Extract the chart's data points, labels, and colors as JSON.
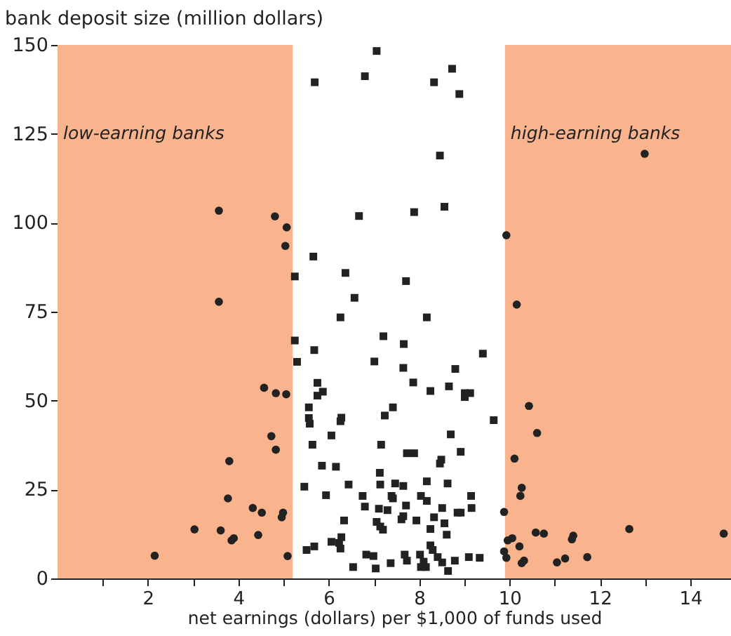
{
  "chart_data": {
    "type": "scatter",
    "xlabel": "net earnings (dollars) per $1,000 of funds used",
    "ylabel": "bank  deposit  size (million dollars)",
    "xlim": [
      0,
      14.9
    ],
    "ylim": [
      0,
      150
    ],
    "xticks": [
      {
        "value": 1,
        "label": null
      },
      2,
      {
        "value": 3,
        "label": null
      },
      4,
      {
        "value": 5,
        "label": null
      },
      6,
      {
        "value": 7,
        "label": null
      },
      8,
      {
        "value": 9,
        "label": null
      },
      10,
      {
        "value": 11,
        "label": null
      },
      12,
      {
        "value": 13,
        "label": null
      },
      14
    ],
    "yticks": [
      0,
      25,
      50,
      75,
      100,
      125,
      150
    ],
    "bands": [
      {
        "axis": "x",
        "from": 0,
        "to": 5.2,
        "label": "low-earning banks",
        "color": "#f9b48e"
      },
      {
        "axis": "x",
        "from": 9.9,
        "to": 14.9,
        "label": "high-earning banks",
        "color": "#f9b48e"
      }
    ],
    "series": [
      {
        "color": "#222222",
        "marker": "circle",
        "x": [
          3.57,
          4.57,
          4.83,
          5.06,
          4.73,
          4.83,
          3.8,
          3.77,
          4.32,
          4.52,
          4.99,
          4.96,
          3.03,
          3.61,
          3.9,
          3.85,
          4.44,
          2.15,
          5.09,
          3.57,
          4.81,
          5.07,
          5.04,
          12.99,
          9.93,
          10.16,
          10.43,
          10.61,
          10.11,
          10.27,
          10.24,
          9.88,
          9.96,
          10.06,
          9.88,
          9.93,
          10.22,
          10.32,
          10.27,
          10.58,
          10.76,
          11.05,
          11.23,
          11.41,
          11.38,
          11.72,
          12.65,
          14.74
        ],
        "values": [
          77.8,
          53.6,
          52.1,
          51.8,
          40,
          36.2,
          33,
          22.5,
          19.8,
          18.5,
          18.5,
          17.2,
          13.8,
          13.5,
          11.3,
          10.7,
          12.2,
          6.4,
          6.3,
          103.4,
          101.8,
          98.7,
          93.5,
          119.4,
          96.5,
          77,
          48.5,
          40.9,
          33.7,
          25.5,
          23.2,
          18.7,
          10.7,
          11.3,
          7.6,
          5.8,
          9,
          5,
          4.3,
          12.9,
          12.6,
          4.5,
          5.6,
          12,
          11,
          6,
          13.9,
          12.6
        ]
      },
      {
        "color": "#222222",
        "marker": "square",
        "x": [
          7.06,
          6.8,
          5.69,
          8.33,
          8.73,
          8.89,
          8.46,
          6.67,
          7.89,
          8.56,
          5.25,
          5.66,
          6.37,
          6.57,
          7.71,
          9.41,
          9.65,
          9.34,
          6.26,
          8.17,
          5.25,
          5.3,
          5.68,
          7.21,
          7.66,
          7.01,
          7.65,
          7.87,
          8.25,
          8.66,
          8.8,
          9.01,
          9.13,
          9.01,
          5.75,
          5.87,
          5.75,
          5.56,
          5.56,
          5.58,
          6.28,
          6.26,
          7.42,
          7.24,
          6.06,
          5.64,
          7.16,
          8.7,
          7.73,
          7.89,
          8.49,
          8.46,
          8.92,
          5.85,
          6.16,
          5.46,
          6.44,
          7.13,
          7.14,
          7.47,
          7.65,
          8.17,
          8.63,
          5.94,
          6.75,
          6.8,
          7.39,
          7.42,
          8.04,
          8.17,
          9.15,
          9.16,
          7.11,
          7.3,
          7.71,
          7.65,
          8.33,
          8.51,
          8.85,
          8.92,
          6.34,
          7.06,
          7.14,
          7.2,
          7.61,
          7.94,
          8.56,
          8.61,
          8.25,
          5.51,
          5.68,
          6.06,
          6.23,
          6.28,
          6.26,
          8.25,
          8.3,
          6.83,
          6.99,
          6.54,
          7.04,
          7.37,
          7.68,
          7.73,
          8.02,
          8.1,
          8.15,
          8.04,
          8.41,
          8.51,
          8.64,
          8.79,
          9.1
        ],
        "values": [
          148.3,
          141.2,
          139.5,
          139.5,
          143.3,
          136.2,
          118.9,
          101.9,
          103,
          104.5,
          84.9,
          90.5,
          85.9,
          78.9,
          83.6,
          63.2,
          44.5,
          5.8,
          73.4,
          73.4,
          66.9,
          60.9,
          64.2,
          68.1,
          65.9,
          61,
          59.2,
          55.1,
          52.7,
          54,
          58.9,
          52.1,
          52.1,
          51,
          55,
          52.5,
          51.4,
          48.1,
          45.1,
          43.5,
          45.2,
          44.2,
          48.1,
          45.8,
          40.2,
          37.6,
          37.6,
          40.5,
          35.2,
          35.2,
          33.4,
          32.3,
          35.6,
          31.7,
          31.4,
          25.8,
          26.4,
          29.7,
          26.4,
          26.7,
          26,
          27.3,
          26.7,
          23.4,
          23.2,
          20.2,
          23.2,
          22.5,
          23.2,
          21.8,
          23.2,
          19.8,
          19.6,
          19.2,
          20.5,
          17.5,
          17.2,
          19.8,
          18.5,
          18.5,
          16.3,
          15.9,
          14.6,
          13.7,
          16.6,
          16.3,
          15.5,
          12.3,
          13.9,
          8,
          9,
          10.3,
          10,
          11.6,
          8.4,
          9.3,
          8,
          6.7,
          6.3,
          3.2,
          2.8,
          4.3,
          6.7,
          5,
          6.7,
          4.7,
          3.2,
          3.2,
          6,
          4.5,
          2.1,
          5,
          6
        ]
      }
    ]
  }
}
